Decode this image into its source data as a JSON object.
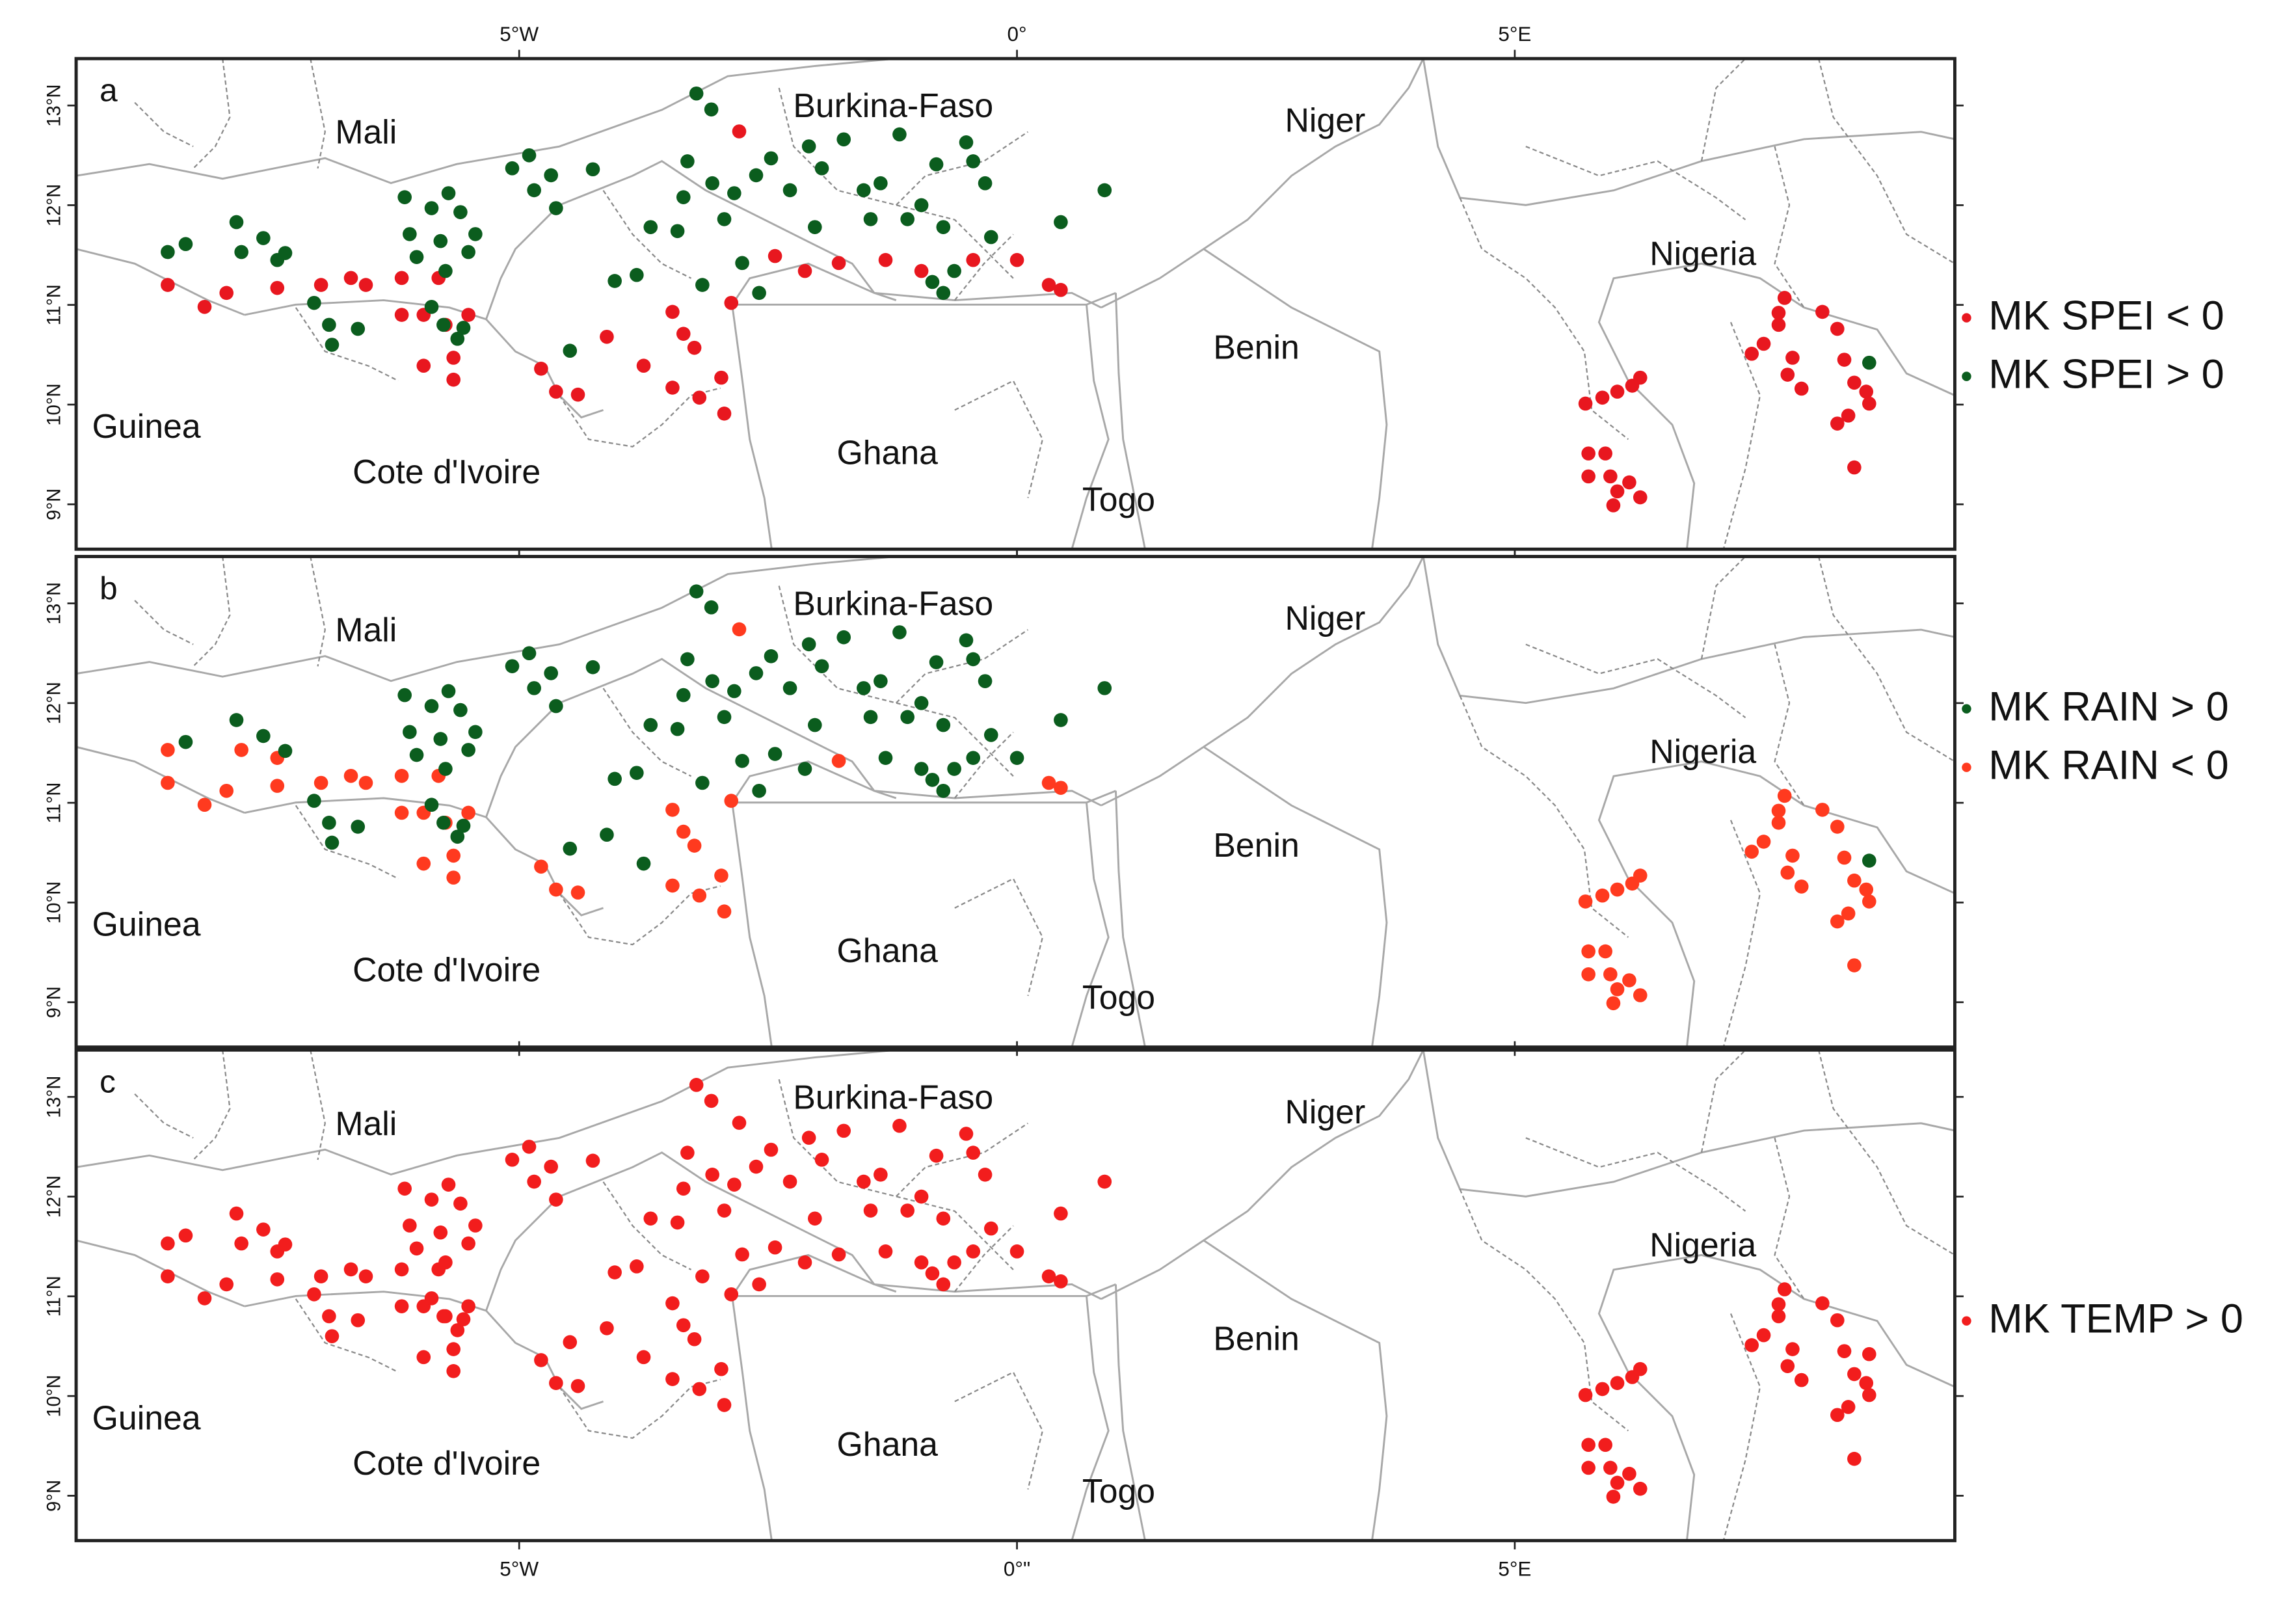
{
  "map": {
    "xlim": [
      -9.45,
      9.42
    ],
    "ylim": [
      8.55,
      13.47
    ],
    "xticks": [
      {
        "value": -5,
        "label": "5°W"
      },
      {
        "value": 0,
        "label": "0°"
      },
      {
        "value": 5,
        "label": "5°E"
      }
    ],
    "xticks_bottom": [
      {
        "value": -5,
        "label": "5°W"
      },
      {
        "value": 0,
        "label": "0°\""
      },
      {
        "value": 5,
        "label": "5°E"
      }
    ],
    "yticks": [
      {
        "value": 9,
        "label": "9°N"
      },
      {
        "value": 10,
        "label": "10°N"
      },
      {
        "value": 11,
        "label": "11°N"
      },
      {
        "value": 12,
        "label": "12°N"
      },
      {
        "value": 13,
        "label": "13°N"
      }
    ]
  },
  "countries": [
    "Mali",
    "Burkina-Faso",
    "Niger",
    "Nigeria",
    "Benin",
    "Guinea",
    "Cote d'Ivoire",
    "Ghana",
    "Togo"
  ],
  "stations": [
    [
      -8.53,
      11.2
    ],
    [
      -8.16,
      10.98
    ],
    [
      -7.94,
      11.12
    ],
    [
      -7.43,
      11.17
    ],
    [
      -6.99,
      11.2
    ],
    [
      -6.69,
      11.27
    ],
    [
      -6.54,
      11.2
    ],
    [
      -6.18,
      11.27
    ],
    [
      -5.81,
      11.27
    ],
    [
      -6.18,
      10.9
    ],
    [
      -5.96,
      10.9
    ],
    [
      -5.74,
      10.8
    ],
    [
      -5.51,
      10.9
    ],
    [
      -5.96,
      10.39
    ],
    [
      -5.66,
      10.47
    ],
    [
      -5.66,
      10.25
    ],
    [
      -4.78,
      10.36
    ],
    [
      -4.63,
      10.13
    ],
    [
      -4.41,
      10.1
    ],
    [
      -4.12,
      10.68
    ],
    [
      -3.75,
      10.39
    ],
    [
      -3.46,
      10.93
    ],
    [
      -3.35,
      10.71
    ],
    [
      -3.24,
      10.57
    ],
    [
      -3.46,
      10.17
    ],
    [
      -3.19,
      10.07
    ],
    [
      -2.97,
      10.27
    ],
    [
      -2.94,
      9.91
    ],
    [
      -2.87,
      11.02
    ],
    [
      -2.43,
      11.49
    ],
    [
      -2.13,
      11.34
    ],
    [
      -1.79,
      11.42
    ],
    [
      -1.32,
      11.45
    ],
    [
      -0.96,
      11.34
    ],
    [
      -0.44,
      11.45
    ],
    [
      0.0,
      11.45
    ],
    [
      0.32,
      11.2
    ],
    [
      0.44,
      11.15
    ],
    [
      -2.79,
      12.74
    ],
    [
      -8.53,
      11.53
    ],
    [
      -8.35,
      11.61
    ],
    [
      -7.84,
      11.83
    ],
    [
      -7.79,
      11.53
    ],
    [
      -7.57,
      11.67
    ],
    [
      -7.43,
      11.45
    ],
    [
      -7.35,
      11.52
    ],
    [
      -7.06,
      11.02
    ],
    [
      -6.91,
      10.8
    ],
    [
      -6.88,
      10.6
    ],
    [
      -6.62,
      10.76
    ],
    [
      -6.15,
      12.08
    ],
    [
      -6.1,
      11.71
    ],
    [
      -6.03,
      11.48
    ],
    [
      -5.88,
      11.97
    ],
    [
      -5.79,
      11.64
    ],
    [
      -5.71,
      12.12
    ],
    [
      -5.59,
      11.93
    ],
    [
      -5.74,
      11.34
    ],
    [
      -5.51,
      11.53
    ],
    [
      -5.44,
      11.71
    ],
    [
      -5.88,
      10.98
    ],
    [
      -5.76,
      10.8
    ],
    [
      -5.62,
      10.66
    ],
    [
      -5.56,
      10.77
    ],
    [
      -5.07,
      12.37
    ],
    [
      -4.9,
      12.5
    ],
    [
      -4.85,
      12.15
    ],
    [
      -4.68,
      12.3
    ],
    [
      -4.63,
      11.97
    ],
    [
      -4.49,
      10.54
    ],
    [
      -4.26,
      12.36
    ],
    [
      -4.04,
      11.24
    ],
    [
      -3.82,
      11.3
    ],
    [
      -3.68,
      11.78
    ],
    [
      -3.41,
      11.74
    ],
    [
      -3.31,
      12.44
    ],
    [
      -3.22,
      13.12
    ],
    [
      -3.07,
      12.96
    ],
    [
      -3.16,
      11.2
    ],
    [
      -3.35,
      12.08
    ],
    [
      -3.06,
      12.22
    ],
    [
      -2.94,
      11.86
    ],
    [
      -2.84,
      12.12
    ],
    [
      -2.76,
      11.42
    ],
    [
      -2.59,
      11.12
    ],
    [
      -2.62,
      12.3
    ],
    [
      -2.47,
      12.47
    ],
    [
      -2.28,
      12.15
    ],
    [
      -2.09,
      12.59
    ],
    [
      -2.03,
      11.78
    ],
    [
      -1.96,
      12.37
    ],
    [
      -1.74,
      12.66
    ],
    [
      -1.54,
      12.15
    ],
    [
      -1.47,
      11.86
    ],
    [
      -1.37,
      12.22
    ],
    [
      -1.18,
      12.71
    ],
    [
      -1.1,
      11.86
    ],
    [
      -0.96,
      12.0
    ],
    [
      -0.81,
      12.41
    ],
    [
      -0.74,
      11.78
    ],
    [
      -0.63,
      11.34
    ],
    [
      -0.51,
      12.63
    ],
    [
      -0.44,
      12.44
    ],
    [
      -0.32,
      12.22
    ],
    [
      -0.26,
      11.68
    ],
    [
      0.44,
      11.83
    ],
    [
      0.88,
      12.15
    ],
    [
      -0.74,
      11.12
    ],
    [
      -0.85,
      11.23
    ],
    [
      5.71,
      10.01
    ],
    [
      5.88,
      10.07
    ],
    [
      6.03,
      10.13
    ],
    [
      6.18,
      10.19
    ],
    [
      6.26,
      10.27
    ],
    [
      5.74,
      9.51
    ],
    [
      5.91,
      9.51
    ],
    [
      5.74,
      9.28
    ],
    [
      5.96,
      9.28
    ],
    [
      6.03,
      9.13
    ],
    [
      6.15,
      9.22
    ],
    [
      6.26,
      9.07
    ],
    [
      5.99,
      8.99
    ],
    [
      7.38,
      10.51
    ],
    [
      7.5,
      10.61
    ],
    [
      7.65,
      10.8
    ],
    [
      7.71,
      11.07
    ],
    [
      7.65,
      10.92
    ],
    [
      7.79,
      10.47
    ],
    [
      7.88,
      10.16
    ],
    [
      7.74,
      10.3
    ],
    [
      8.09,
      10.93
    ],
    [
      8.24,
      10.76
    ],
    [
      8.31,
      10.45
    ],
    [
      8.41,
      10.22
    ],
    [
      8.53,
      10.13
    ],
    [
      8.56,
      10.01
    ],
    [
      8.35,
      9.89
    ],
    [
      8.24,
      9.81
    ],
    [
      8.41,
      9.37
    ],
    [
      8.56,
      10.42
    ]
  ],
  "panels": [
    {
      "letter": "a",
      "series": [
        {
          "name": "MK SPEI < 0",
          "color": "#e8171f"
        },
        {
          "name": "MK SPEI > 0",
          "color": "#0b5d1e"
        }
      ],
      "signs": [
        0,
        0,
        0,
        0,
        0,
        0,
        0,
        0,
        0,
        0,
        0,
        0,
        0,
        0,
        0,
        0,
        0,
        0,
        0,
        0,
        0,
        0,
        0,
        0,
        0,
        0,
        0,
        0,
        0,
        0,
        0,
        0,
        0,
        0,
        0,
        0,
        0,
        0,
        0,
        1,
        1,
        1,
        1,
        1,
        1,
        1,
        1,
        1,
        1,
        1,
        1,
        1,
        1,
        1,
        1,
        1,
        1,
        1,
        1,
        1,
        1,
        1,
        1,
        1,
        1,
        1,
        1,
        1,
        1,
        1,
        1,
        1,
        1,
        1,
        1,
        1,
        1,
        1,
        1,
        1,
        1,
        1,
        1,
        1,
        1,
        1,
        1,
        1,
        1,
        1,
        1,
        1,
        1,
        1,
        1,
        1,
        1,
        1,
        1,
        1,
        1,
        1,
        1,
        1,
        1,
        1,
        1,
        1,
        1,
        0,
        0,
        0,
        0,
        0,
        0,
        0,
        0,
        0,
        0,
        0,
        0,
        0,
        0,
        0,
        0,
        0,
        0,
        0,
        0,
        0,
        0,
        0,
        0,
        0,
        0,
        0,
        0,
        0,
        0,
        1
      ]
    },
    {
      "letter": "b",
      "series": [
        {
          "name": "MK RAIN > 0",
          "color": "#0b5d1e"
        },
        {
          "name": "MK RAIN < 0",
          "color": "#ff3a1f"
        }
      ],
      "signs": [
        1,
        1,
        1,
        1,
        1,
        1,
        1,
        1,
        1,
        1,
        1,
        1,
        1,
        1,
        1,
        1,
        1,
        1,
        1,
        0,
        0,
        1,
        1,
        1,
        1,
        1,
        1,
        1,
        1,
        0,
        0,
        1,
        0,
        0,
        0,
        0,
        1,
        1,
        1,
        1,
        0,
        0,
        1,
        0,
        1,
        0,
        0,
        0,
        0,
        0,
        0,
        0,
        0,
        0,
        0,
        0,
        0,
        0,
        0,
        0,
        0,
        0,
        0,
        0,
        0,
        0,
        0,
        0,
        0,
        0,
        0,
        0,
        0,
        0,
        0,
        0,
        0,
        0,
        0,
        0,
        0,
        0,
        0,
        0,
        0,
        0,
        0,
        0,
        0,
        0,
        0,
        0,
        0,
        0,
        0,
        0,
        0,
        0,
        0,
        0,
        0,
        0,
        0,
        0,
        0,
        0,
        0,
        0,
        0,
        1,
        1,
        1,
        1,
        1,
        1,
        1,
        1,
        1,
        1,
        1,
        1,
        1,
        1,
        1,
        1,
        1,
        1,
        1,
        1,
        1,
        1,
        1,
        1,
        1,
        1,
        1,
        1,
        1,
        1,
        0
      ]
    },
    {
      "letter": "c",
      "series": [
        {
          "name": "MK TEMP > 0",
          "color": "#f21d1d"
        }
      ],
      "signs": [
        0,
        0,
        0,
        0,
        0,
        0,
        0,
        0,
        0,
        0,
        0,
        0,
        0,
        0,
        0,
        0,
        0,
        0,
        0,
        0,
        0,
        0,
        0,
        0,
        0,
        0,
        0,
        0,
        0,
        0,
        0,
        0,
        0,
        0,
        0,
        0,
        0,
        0,
        0,
        0,
        0,
        0,
        0,
        0,
        0,
        0,
        0,
        0,
        0,
        0,
        0,
        0,
        0,
        0,
        0,
        0,
        0,
        0,
        0,
        0,
        0,
        0,
        0,
        0,
        0,
        0,
        0,
        0,
        0,
        0,
        0,
        0,
        0,
        0,
        0,
        0,
        0,
        0,
        0,
        0,
        0,
        0,
        0,
        0,
        0,
        0,
        0,
        0,
        0,
        0,
        0,
        0,
        0,
        0,
        0,
        0,
        0,
        0,
        0,
        0,
        0,
        0,
        0,
        0,
        0,
        0,
        0,
        0,
        0,
        0,
        0,
        0,
        0,
        0,
        0,
        0,
        0,
        0,
        0,
        0,
        0,
        0,
        0,
        0,
        0,
        0,
        0,
        0,
        0,
        0,
        0,
        0,
        0,
        0,
        0,
        0,
        0,
        0,
        0,
        0
      ]
    }
  ]
}
